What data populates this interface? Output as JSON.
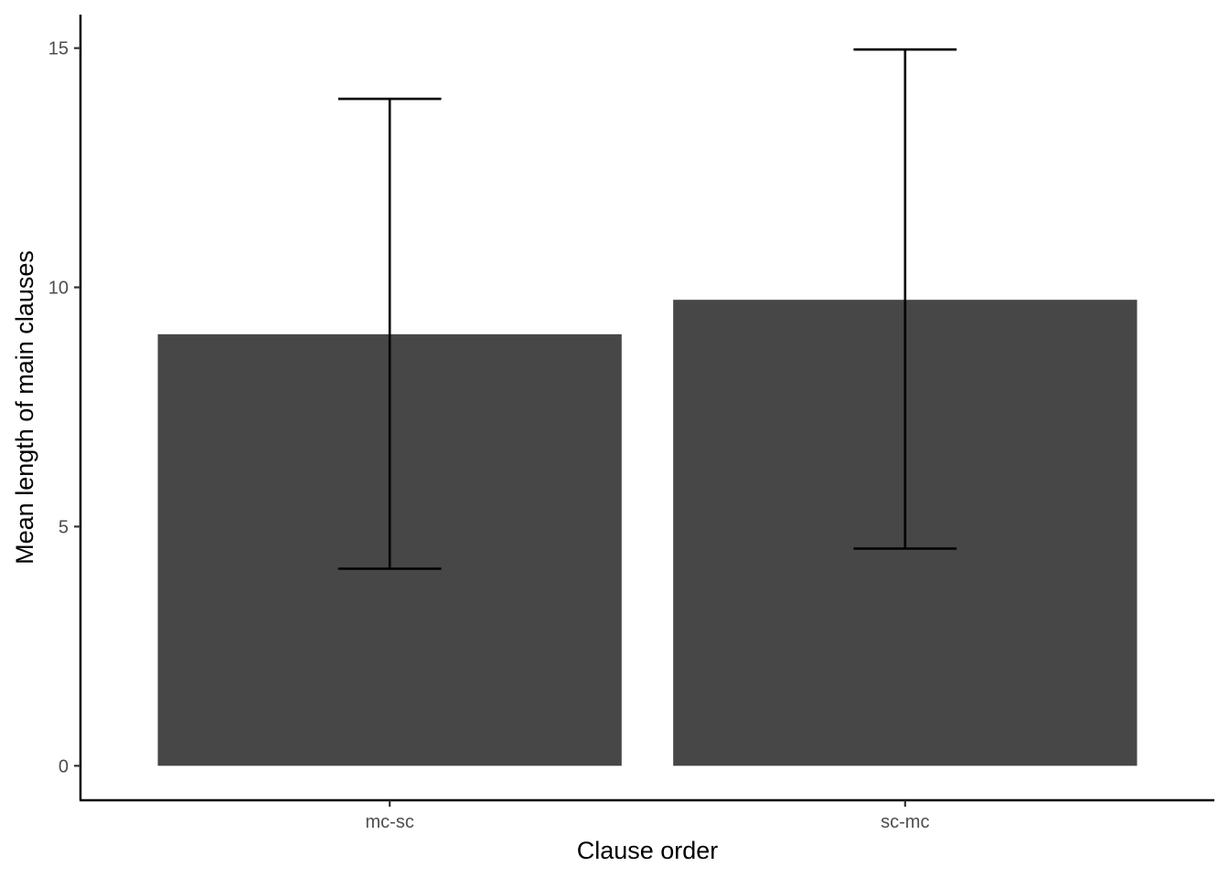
{
  "chart_data": {
    "type": "bar",
    "categories": [
      "mc-sc",
      "sc-mc"
    ],
    "values": [
      9.02,
      9.74
    ],
    "error_bars": [
      {
        "lower": 4.12,
        "upper": 13.94
      },
      {
        "lower": 4.54,
        "upper": 14.97
      }
    ],
    "xlabel": "Clause order",
    "ylabel": "Mean length of main clauses",
    "ylim": [
      -0.72,
      15.7
    ],
    "yticks": [
      0,
      5,
      10,
      15
    ],
    "grid": false,
    "legend": "none",
    "colors": {
      "bar": "#474747",
      "error_bar": "#000000",
      "axis": "#000000",
      "tick_label": "#4d4d4d"
    }
  }
}
